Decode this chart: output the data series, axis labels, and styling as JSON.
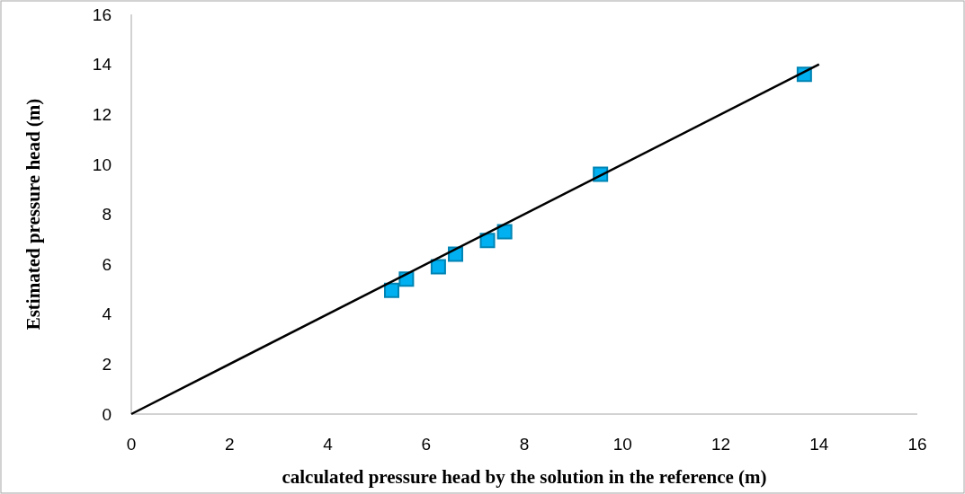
{
  "chart_data": {
    "type": "scatter",
    "xlabel": "calculated pressure head by the solution in the reference (m)",
    "ylabel": "Estimated pressure head (m)",
    "xlim": [
      0,
      16
    ],
    "ylim": [
      0,
      16
    ],
    "xticks": [
      0,
      2,
      4,
      6,
      8,
      10,
      12,
      14,
      16
    ],
    "yticks": [
      0,
      2,
      4,
      6,
      8,
      10,
      12,
      14,
      16
    ],
    "grid": false,
    "series": [
      {
        "marker": "square",
        "color": "#00b0f0",
        "x": [
          5.3,
          5.6,
          6.25,
          6.6,
          7.25,
          7.6,
          9.55,
          13.7
        ],
        "values": [
          4.95,
          5.4,
          5.9,
          6.4,
          6.95,
          7.3,
          9.6,
          13.6
        ]
      },
      {
        "type": "line",
        "color": "#000000",
        "x": [
          0,
          14
        ],
        "values": [
          0,
          14
        ]
      }
    ]
  }
}
